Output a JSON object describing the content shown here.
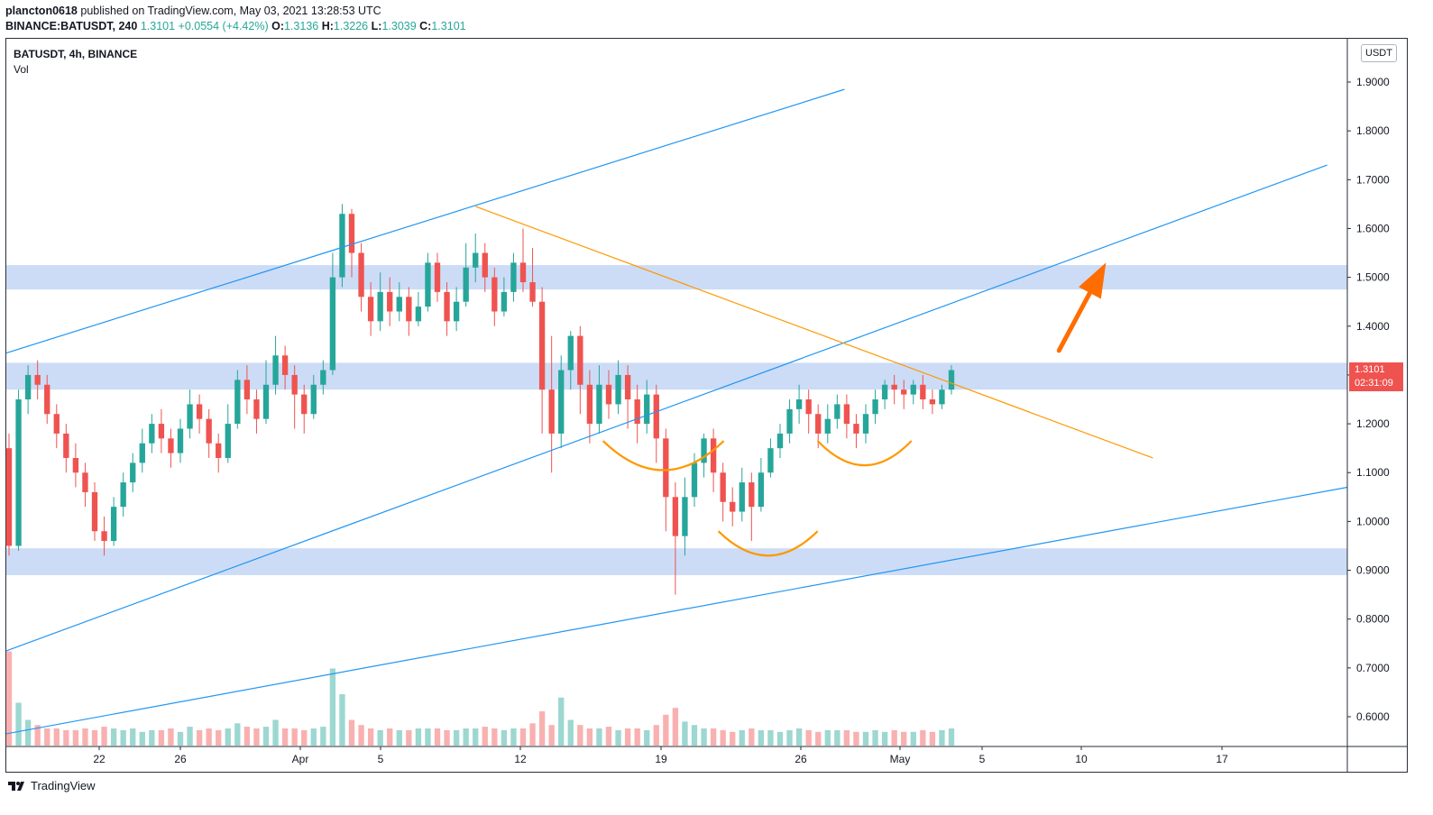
{
  "header": {
    "author": "plancton0618",
    "published": "published on TradingView.com, May 03, 2021 13:28:53 UTC"
  },
  "quote": {
    "symbol": "BINANCE:BATUSDT, 240",
    "last": "1.3101",
    "change": "+0.0554 (+4.42%)",
    "o_label": "O:",
    "o": "1.3136",
    "h_label": "H:",
    "h": "1.3226",
    "l_label": "L:",
    "l": "1.3039",
    "c_label": "C:",
    "c": "1.3101"
  },
  "legend": {
    "symbol": "BATUSDT, 4h, BINANCE",
    "volume": "Vol"
  },
  "price_axis": {
    "unit": "USDT"
  },
  "last_price_tag": {
    "price": "1.3101",
    "countdown": "02:31:09"
  },
  "branding": {
    "name": "TradingView"
  },
  "colors": {
    "up": "#26a69a",
    "down": "#ef5350",
    "channel": "#2196f3",
    "trendline": "#ff9800",
    "zone": "#c7d8f5",
    "arrow": "#ff6d00"
  },
  "chart_data": {
    "type": "candlestick",
    "ylim": [
      0.55,
      1.95
    ],
    "y_ticks": [
      "1.9000",
      "1.8000",
      "1.7000",
      "1.6000",
      "1.5000",
      "1.4000",
      "1.3000",
      "1.2000",
      "1.1000",
      "1.0000",
      "0.9000",
      "0.8000",
      "0.7000",
      "0.6000"
    ],
    "x_ticks": [
      "22",
      "26",
      "Apr",
      "5",
      "12",
      "19",
      "26",
      "May",
      "5",
      "10",
      "17"
    ],
    "candles": [
      [
        1.15,
        0.95,
        1.18,
        0.93
      ],
      [
        0.95,
        1.25,
        1.27,
        0.94
      ],
      [
        1.25,
        1.3,
        1.32,
        1.22
      ],
      [
        1.3,
        1.28,
        1.33,
        1.25
      ],
      [
        1.28,
        1.22,
        1.3,
        1.2
      ],
      [
        1.22,
        1.18,
        1.24,
        1.15
      ],
      [
        1.18,
        1.13,
        1.2,
        1.1
      ],
      [
        1.13,
        1.1,
        1.16,
        1.07
      ],
      [
        1.1,
        1.06,
        1.12,
        1.03
      ],
      [
        1.06,
        0.98,
        1.08,
        0.96
      ],
      [
        0.98,
        0.96,
        1.01,
        0.93
      ],
      [
        0.96,
        1.03,
        1.05,
        0.95
      ],
      [
        1.03,
        1.08,
        1.1,
        1.01
      ],
      [
        1.08,
        1.12,
        1.14,
        1.06
      ],
      [
        1.12,
        1.16,
        1.19,
        1.1
      ],
      [
        1.16,
        1.2,
        1.22,
        1.14
      ],
      [
        1.2,
        1.17,
        1.23,
        1.14
      ],
      [
        1.17,
        1.14,
        1.19,
        1.11
      ],
      [
        1.14,
        1.19,
        1.21,
        1.12
      ],
      [
        1.19,
        1.24,
        1.27,
        1.17
      ],
      [
        1.24,
        1.21,
        1.26,
        1.18
      ],
      [
        1.21,
        1.16,
        1.23,
        1.13
      ],
      [
        1.16,
        1.13,
        1.18,
        1.1
      ],
      [
        1.13,
        1.2,
        1.24,
        1.12
      ],
      [
        1.2,
        1.29,
        1.31,
        1.19
      ],
      [
        1.29,
        1.25,
        1.32,
        1.22
      ],
      [
        1.25,
        1.21,
        1.27,
        1.18
      ],
      [
        1.21,
        1.28,
        1.33,
        1.2
      ],
      [
        1.28,
        1.34,
        1.38,
        1.26
      ],
      [
        1.34,
        1.3,
        1.36,
        1.27
      ],
      [
        1.3,
        1.26,
        1.32,
        1.19
      ],
      [
        1.26,
        1.22,
        1.28,
        1.18
      ],
      [
        1.22,
        1.28,
        1.3,
        1.21
      ],
      [
        1.28,
        1.31,
        1.33,
        1.26
      ],
      [
        1.31,
        1.5,
        1.55,
        1.3
      ],
      [
        1.5,
        1.63,
        1.65,
        1.48
      ],
      [
        1.63,
        1.55,
        1.64,
        1.5
      ],
      [
        1.55,
        1.46,
        1.57,
        1.43
      ],
      [
        1.46,
        1.41,
        1.49,
        1.38
      ],
      [
        1.41,
        1.47,
        1.51,
        1.39
      ],
      [
        1.47,
        1.43,
        1.5,
        1.4
      ],
      [
        1.43,
        1.46,
        1.49,
        1.41
      ],
      [
        1.46,
        1.41,
        1.48,
        1.38
      ],
      [
        1.41,
        1.44,
        1.47,
        1.4
      ],
      [
        1.44,
        1.53,
        1.55,
        1.43
      ],
      [
        1.53,
        1.47,
        1.55,
        1.45
      ],
      [
        1.47,
        1.41,
        1.49,
        1.38
      ],
      [
        1.41,
        1.45,
        1.48,
        1.39
      ],
      [
        1.45,
        1.52,
        1.57,
        1.44
      ],
      [
        1.52,
        1.55,
        1.59,
        1.49
      ],
      [
        1.55,
        1.5,
        1.57,
        1.47
      ],
      [
        1.5,
        1.43,
        1.52,
        1.4
      ],
      [
        1.43,
        1.47,
        1.5,
        1.42
      ],
      [
        1.47,
        1.53,
        1.55,
        1.45
      ],
      [
        1.53,
        1.49,
        1.6,
        1.47
      ],
      [
        1.49,
        1.45,
        1.56,
        1.44
      ],
      [
        1.45,
        1.27,
        1.48,
        1.18
      ],
      [
        1.27,
        1.18,
        1.38,
        1.1
      ],
      [
        1.18,
        1.31,
        1.34,
        1.15
      ],
      [
        1.31,
        1.38,
        1.39,
        1.27
      ],
      [
        1.38,
        1.28,
        1.4,
        1.22
      ],
      [
        1.28,
        1.2,
        1.31,
        1.16
      ],
      [
        1.2,
        1.28,
        1.32,
        1.18
      ],
      [
        1.28,
        1.24,
        1.31,
        1.21
      ],
      [
        1.24,
        1.3,
        1.33,
        1.22
      ],
      [
        1.3,
        1.25,
        1.32,
        1.19
      ],
      [
        1.25,
        1.2,
        1.28,
        1.16
      ],
      [
        1.2,
        1.26,
        1.29,
        1.18
      ],
      [
        1.26,
        1.17,
        1.28,
        1.12
      ],
      [
        1.17,
        1.05,
        1.19,
        0.98
      ],
      [
        1.05,
        0.97,
        1.08,
        0.85
      ],
      [
        0.97,
        1.05,
        1.09,
        0.93
      ],
      [
        1.05,
        1.12,
        1.14,
        1.03
      ],
      [
        1.12,
        1.17,
        1.18,
        1.09
      ],
      [
        1.17,
        1.1,
        1.19,
        1.06
      ],
      [
        1.1,
        1.04,
        1.12,
        1.0
      ],
      [
        1.04,
        1.02,
        1.07,
        0.99
      ],
      [
        1.02,
        1.08,
        1.11,
        1.0
      ],
      [
        1.08,
        1.03,
        1.1,
        0.96
      ],
      [
        1.03,
        1.1,
        1.13,
        1.02
      ],
      [
        1.1,
        1.15,
        1.17,
        1.09
      ],
      [
        1.15,
        1.18,
        1.2,
        1.13
      ],
      [
        1.18,
        1.23,
        1.25,
        1.16
      ],
      [
        1.23,
        1.25,
        1.28,
        1.2
      ],
      [
        1.25,
        1.22,
        1.27,
        1.18
      ],
      [
        1.22,
        1.18,
        1.24,
        1.15
      ],
      [
        1.18,
        1.21,
        1.24,
        1.16
      ],
      [
        1.21,
        1.24,
        1.26,
        1.19
      ],
      [
        1.24,
        1.2,
        1.26,
        1.17
      ],
      [
        1.2,
        1.18,
        1.22,
        1.15
      ],
      [
        1.18,
        1.22,
        1.24,
        1.16
      ],
      [
        1.22,
        1.25,
        1.27,
        1.2
      ],
      [
        1.25,
        1.28,
        1.29,
        1.23
      ],
      [
        1.28,
        1.27,
        1.3,
        1.24
      ],
      [
        1.27,
        1.26,
        1.29,
        1.23
      ],
      [
        1.26,
        1.28,
        1.29,
        1.24
      ],
      [
        1.28,
        1.25,
        1.3,
        1.23
      ],
      [
        1.25,
        1.24,
        1.27,
        1.22
      ],
      [
        1.24,
        1.27,
        1.28,
        1.23
      ],
      [
        1.27,
        1.31,
        1.32,
        1.26
      ]
    ],
    "volumes": [
      0.55,
      0.25,
      0.15,
      0.12,
      0.1,
      0.1,
      0.09,
      0.09,
      0.1,
      0.09,
      0.11,
      0.1,
      0.09,
      0.1,
      0.08,
      0.09,
      0.09,
      0.1,
      0.08,
      0.11,
      0.09,
      0.1,
      0.09,
      0.1,
      0.13,
      0.11,
      0.1,
      0.11,
      0.15,
      0.1,
      0.1,
      0.09,
      0.1,
      0.11,
      0.45,
      0.3,
      0.15,
      0.12,
      0.1,
      0.09,
      0.1,
      0.09,
      0.09,
      0.1,
      0.1,
      0.1,
      0.09,
      0.09,
      0.1,
      0.1,
      0.11,
      0.1,
      0.09,
      0.1,
      0.1,
      0.13,
      0.2,
      0.12,
      0.28,
      0.15,
      0.12,
      0.1,
      0.1,
      0.11,
      0.09,
      0.1,
      0.1,
      0.09,
      0.12,
      0.18,
      0.22,
      0.14,
      0.12,
      0.1,
      0.1,
      0.09,
      0.08,
      0.09,
      0.1,
      0.09,
      0.09,
      0.08,
      0.09,
      0.1,
      0.09,
      0.08,
      0.09,
      0.09,
      0.09,
      0.08,
      0.08,
      0.09,
      0.08,
      0.09,
      0.08,
      0.08,
      0.09,
      0.08,
      0.09,
      0.1
    ],
    "zones": [
      [
        1.475,
        1.525
      ],
      [
        1.27,
        1.325
      ],
      [
        0.89,
        0.945
      ]
    ],
    "channel_lines": [
      {
        "x0": 0.0,
        "y0": 1.345,
        "x1": 0.625,
        "y1": 1.885
      },
      {
        "x0": 0.0,
        "y0": 0.735,
        "x1": 0.985,
        "y1": 1.73
      },
      {
        "x0": 0.0,
        "y0": 0.565,
        "x1": 1.0,
        "y1": 1.07
      }
    ],
    "trendline": {
      "x0": 0.35,
      "y0": 1.645,
      "x1": 0.855,
      "y1": 1.13
    },
    "arcs": [
      {
        "cx": 0.49,
        "cy": 1.165,
        "rx": 0.045,
        "depth": 0.06
      },
      {
        "cx": 0.568,
        "cy": 0.98,
        "rx": 0.037,
        "depth": 0.05
      },
      {
        "cx": 0.64,
        "cy": 1.165,
        "rx": 0.035,
        "depth": 0.05
      }
    ],
    "arrow": {
      "x0": 0.785,
      "y0": 1.35,
      "x1": 0.82,
      "y1": 1.53
    }
  }
}
